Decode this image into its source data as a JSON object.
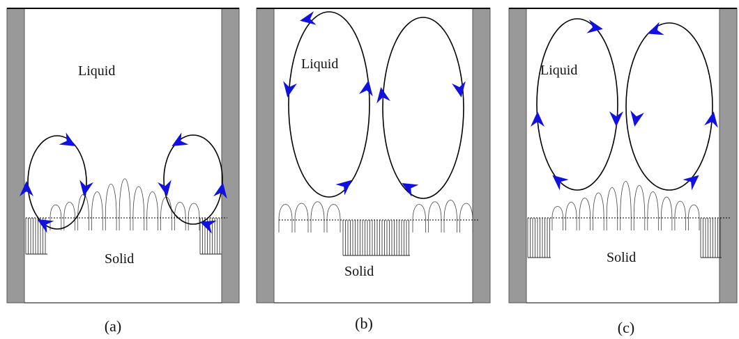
{
  "panels": [
    {
      "liquid": "Liquid",
      "solid": "Solid",
      "caption": "(a)"
    },
    {
      "liquid": "Liquid",
      "solid": "Solid",
      "caption": "(b)"
    },
    {
      "liquid": "Liquid",
      "solid": "Solid",
      "caption": "(c)"
    }
  ]
}
